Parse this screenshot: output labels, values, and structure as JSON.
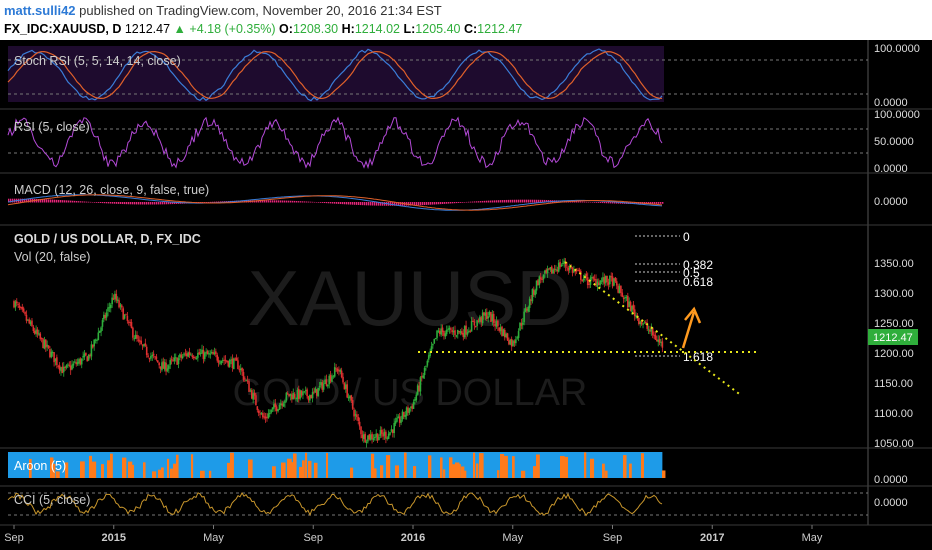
{
  "header": {
    "user": "matt.sulli42",
    "published_text": "published on TradingView.com, November 20, 2016 21:34 EST",
    "symbol": "FX_IDC:XAUUSD, D",
    "last": "1212.47",
    "up_arrow": "▲",
    "change": "+4.18 (+0.35%)",
    "o_label": "O:",
    "o": "1208.30",
    "h_label": "H:",
    "h": "1214.02",
    "l_label": "L:",
    "l": "1205.40",
    "c_label": "C:",
    "c": "1212.47"
  },
  "watermark": {
    "line1": "XAUUSD",
    "line2": "GOLD / US DOLLAR"
  },
  "panes": {
    "stoch": {
      "label": "Stoch RSI (5, 5, 14, 14, close)",
      "ticks": [
        "100.0000",
        "0.0000"
      ]
    },
    "rsi": {
      "label": "RSI (5, close)",
      "ticks": [
        "100.0000",
        "50.0000",
        "0.0000"
      ]
    },
    "macd": {
      "label": "MACD (12, 26, close, 9, false, true)",
      "ticks": [
        "0.0000"
      ]
    },
    "price": {
      "label1": "GOLD / US DOLLAR, D, FX_IDC",
      "label2": "Vol (20, false)",
      "ticks": [
        "1350.00",
        "1300.00",
        "1250.00",
        "1200.00",
        "1150.00",
        "1100.00",
        "1050.00"
      ],
      "last_tag": "1212.47"
    },
    "aroon": {
      "label": "Aroon (5)",
      "ticks": [
        "0.0000"
      ]
    },
    "cci": {
      "label": "CCI (5, close)",
      "ticks": [
        "0.0000"
      ]
    }
  },
  "fib_labels": [
    "0",
    "0.382",
    "0.5",
    "0.618",
    "1.618"
  ],
  "x_axis": [
    "Sep",
    "2015",
    "May",
    "Sep",
    "2016",
    "May",
    "Sep",
    "2017",
    "May"
  ],
  "colors": {
    "up": "#2fae3b",
    "down": "#e03030",
    "accent": "#ff9a1f",
    "purple": "#b44ad8",
    "aroon_up": "#1e9be8",
    "aroon_down": "#ff7a1a"
  },
  "chart_data": {
    "type": "candlestick",
    "title": "GOLD / US DOLLAR, D, FX_IDC",
    "x_range": [
      "2014-09",
      "2017-05"
    ],
    "ylim": [
      1030,
      1380
    ],
    "close_path": [
      {
        "x": "2014-09",
        "y": 1285
      },
      {
        "x": "2014-10",
        "y": 1225
      },
      {
        "x": "2014-11",
        "y": 1170
      },
      {
        "x": "2014-12",
        "y": 1195
      },
      {
        "x": "2015-01",
        "y": 1295
      },
      {
        "x": "2015-02",
        "y": 1215
      },
      {
        "x": "2015-03",
        "y": 1175
      },
      {
        "x": "2015-04",
        "y": 1200
      },
      {
        "x": "2015-05",
        "y": 1195
      },
      {
        "x": "2015-06",
        "y": 1180
      },
      {
        "x": "2015-07",
        "y": 1090
      },
      {
        "x": "2015-08",
        "y": 1130
      },
      {
        "x": "2015-09",
        "y": 1130
      },
      {
        "x": "2015-10",
        "y": 1175
      },
      {
        "x": "2015-11",
        "y": 1060
      },
      {
        "x": "2015-12",
        "y": 1065
      },
      {
        "x": "2016-01",
        "y": 1115
      },
      {
        "x": "2016-02",
        "y": 1235
      },
      {
        "x": "2016-03",
        "y": 1235
      },
      {
        "x": "2016-04",
        "y": 1265
      },
      {
        "x": "2016-05",
        "y": 1215
      },
      {
        "x": "2016-06",
        "y": 1320
      },
      {
        "x": "2016-07",
        "y": 1350
      },
      {
        "x": "2016-08",
        "y": 1320
      },
      {
        "x": "2016-09",
        "y": 1320
      },
      {
        "x": "2016-10",
        "y": 1260
      },
      {
        "x": "2016-11",
        "y": 1212.47
      }
    ],
    "fibonacci": [
      {
        "level": "0",
        "price": 1375
      },
      {
        "level": "0.382",
        "price": 1325
      },
      {
        "level": "0.5",
        "price": 1312
      },
      {
        "level": "0.618",
        "price": 1298
      },
      {
        "level": "1.618",
        "price": 1178
      }
    ],
    "support_line": 1183,
    "last_price": 1212.47
  }
}
